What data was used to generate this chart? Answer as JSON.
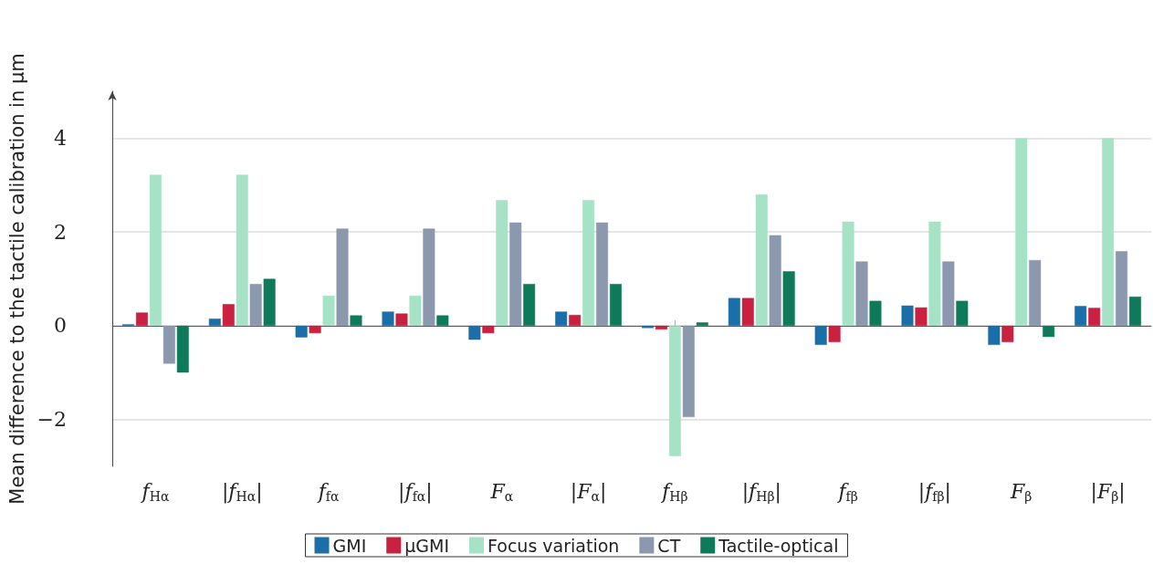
{
  "chart_data": {
    "type": "bar",
    "ylabel": "Mean difference to the tactile calibration in µm",
    "categories": [
      "f$_{Hα}$",
      "|f$_{Hα}$|",
      "f$_{fα}$",
      "|f$_{fα}$|",
      "F$_{α}$",
      "|F$_{α}$|",
      "f$_{Hβ}$",
      "|f$_{Hβ}$|",
      "f$_{fβ}$",
      "|f$_{fβ}$|",
      "F$_{β}$",
      "|F$_{β}$|"
    ],
    "series": [
      {
        "name": "GMI",
        "color": "#1b6fa8",
        "values": [
          0.03,
          0.15,
          -0.25,
          0.3,
          -0.3,
          0.3,
          -0.05,
          0.59,
          -0.41,
          0.43,
          -0.41,
          0.42
        ]
      },
      {
        "name": "µGMI",
        "color": "#c9213f",
        "values": [
          0.28,
          0.46,
          -0.16,
          0.26,
          -0.16,
          0.23,
          -0.08,
          0.59,
          -0.35,
          0.39,
          -0.35,
          0.38
        ]
      },
      {
        "name": "Focus variation",
        "color": "#a6e3c6",
        "values": [
          3.22,
          3.22,
          0.64,
          0.64,
          2.68,
          2.68,
          -2.78,
          2.8,
          2.22,
          2.22,
          4.0,
          4.0
        ]
      },
      {
        "name": "CT",
        "color": "#8b98ad",
        "values": [
          -0.81,
          0.89,
          2.07,
          2.07,
          2.2,
          2.2,
          -1.95,
          1.93,
          1.37,
          1.37,
          1.4,
          1.59
        ]
      },
      {
        "name": "Tactile-optical",
        "color": "#0f7a5a",
        "values": [
          -1.0,
          1.0,
          0.22,
          0.22,
          0.89,
          0.89,
          0.07,
          1.16,
          0.53,
          0.53,
          -0.24,
          0.62
        ]
      }
    ],
    "ylim": [
      -3,
      5
    ],
    "yticks": [
      -2,
      0,
      2,
      4
    ],
    "grid": "y",
    "legend": "bottom"
  }
}
